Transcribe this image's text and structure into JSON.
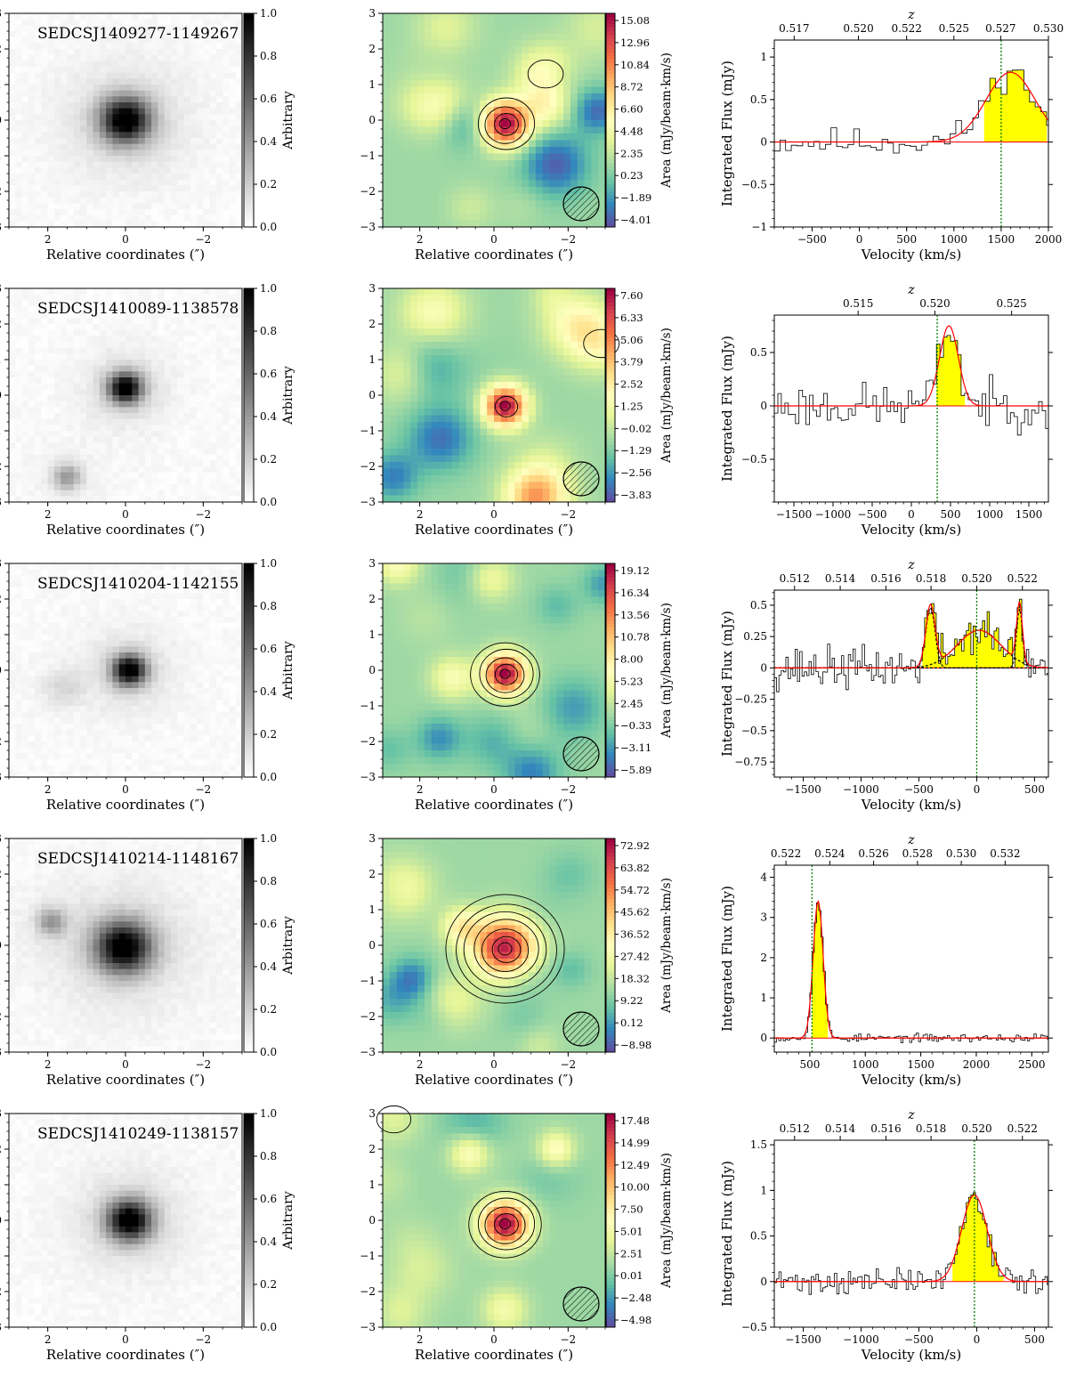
{
  "figure": {
    "coord_label": "Relative coordinates (″)",
    "cbar_label_gray": "Arbitrary",
    "cbar_label_mom0": "Area (mJy/beam·km/s)",
    "ylabel_spec": "Integrated Flux (mJy)",
    "xlabel_spec": "Velocity (km/s)",
    "z_label": "z",
    "coord_ticks_x": [
      "2",
      "0",
      "−2"
    ],
    "coord_ticks_y": [
      "3",
      "2",
      "1",
      "0",
      "−1",
      "−2",
      "−3"
    ],
    "gray_cbar_ticks": [
      "1.0",
      "0.8",
      "0.6",
      "0.4",
      "0.2",
      "0.0"
    ],
    "colors": {
      "line_fill": "#ffff00",
      "gauss": "#ff0000",
      "vline": "#008000",
      "spectrum": "#000000"
    }
  },
  "chart_data": [
    {
      "source": "SEDCSJ1409277-1149267",
      "type": "line",
      "optical": {
        "sources": [
          {
            "dx": 0.0,
            "dy": 0.0,
            "peak": 1.0,
            "sigma": 0.45
          }
        ]
      },
      "mom0": {
        "cbar_ticks": [
          "15.08",
          "12.96",
          "10.84",
          "8.72",
          "6.60",
          "4.48",
          "2.35",
          "0.23",
          "−1.89",
          "−4.01"
        ],
        "peak": {
          "dx": -0.3,
          "dy": -0.1,
          "sigma": 0.45,
          "levels": 4
        }
      },
      "spectrum": {
        "xlim": [
          -900,
          2000
        ],
        "ylim": [
          -1.0,
          1.2
        ],
        "xticks": [
          -500,
          0,
          500,
          1000,
          1500,
          2000
        ],
        "yticks": [
          -1.0,
          -0.5,
          0.0,
          0.5,
          1.0
        ],
        "ztick_labels": [
          "0.517",
          "0.520",
          "0.522",
          "0.525",
          "0.527",
          "0.530"
        ],
        "ztick_vel": [
          -690,
          -10,
          500,
          1000,
          1495,
          2000
        ],
        "vline": 1500,
        "fill_range": [
          1350,
          2000
        ],
        "channel_width": 60,
        "gauss": [
          {
            "amp": 0.82,
            "center": 1600,
            "sigma": 260
          }
        ],
        "noise": 0.12,
        "seed": 11
      }
    },
    {
      "source": "SEDCSJ1410089-1138578",
      "type": "line",
      "optical": {
        "sources": [
          {
            "dx": 0.0,
            "dy": 0.2,
            "peak": 1.0,
            "sigma": 0.3
          },
          {
            "dx": 1.5,
            "dy": -2.3,
            "peak": 0.35,
            "sigma": 0.25
          }
        ]
      },
      "mom0": {
        "cbar_ticks": [
          "7.60",
          "6.33",
          "5.06",
          "3.79",
          "2.52",
          "1.25",
          "−0.02",
          "−1.29",
          "−2.56",
          "−3.83"
        ],
        "peak": {
          "dx": -0.3,
          "dy": -0.3,
          "sigma": 0.4,
          "levels": 2
        }
      },
      "spectrum": {
        "xlim": [
          -1750,
          1750
        ],
        "ylim": [
          -0.9,
          0.85
        ],
        "xticks": [
          -1500,
          -1000,
          -500,
          0,
          500,
          1000,
          1500
        ],
        "yticks": [
          -0.5,
          0.0,
          0.5
        ],
        "ztick_labels": [
          "0.515",
          "0.520",
          "0.525"
        ],
        "ztick_vel": [
          -680,
          300,
          1280
        ],
        "vline": 330,
        "fill_range": [
          300,
          700
        ],
        "channel_width": 45,
        "gauss": [
          {
            "amp": 0.75,
            "center": 480,
            "sigma": 120
          }
        ],
        "noise": 0.15,
        "seed": 23
      }
    },
    {
      "source": "SEDCSJ1410204-1142155",
      "type": "line",
      "optical": {
        "sources": [
          {
            "dx": -0.1,
            "dy": 0.0,
            "peak": 1.0,
            "sigma": 0.3
          },
          {
            "dx": 1.6,
            "dy": -0.5,
            "peak": 0.12,
            "sigma": 0.35
          }
        ]
      },
      "mom0": {
        "cbar_ticks": [
          "19.12",
          "16.34",
          "13.56",
          "10.78",
          "8.00",
          "5.23",
          "2.45",
          "−0.33",
          "−3.11",
          "−5.89"
        ],
        "peak": {
          "dx": -0.3,
          "dy": -0.1,
          "sigma": 0.4,
          "levels": 5
        }
      },
      "spectrum": {
        "xlim": [
          -1750,
          620
        ],
        "ylim": [
          -0.87,
          0.62
        ],
        "xticks": [
          -1500,
          -1000,
          -500,
          0,
          500
        ],
        "yticks": [
          -0.75,
          -0.5,
          -0.25,
          0.0,
          0.25,
          0.5
        ],
        "ztick_labels": [
          "0.512",
          "0.514",
          "0.516",
          "0.518",
          "0.520",
          "0.522"
        ],
        "ztick_vel": [
          -1575,
          -1180,
          -785,
          -395,
          0,
          395
        ],
        "vline": 0,
        "fill_range": [
          -470,
          400
        ],
        "channel_width": 20,
        "gauss": [
          {
            "amp": 0.48,
            "center": -400,
            "sigma": 40
          },
          {
            "amp": 0.3,
            "center": 20,
            "sigma": 190
          },
          {
            "amp": 0.47,
            "center": 370,
            "sigma": 25
          }
        ],
        "noise": 0.12,
        "seed": 37
      }
    },
    {
      "source": "SEDCSJ1410214-1148167",
      "type": "line",
      "optical": {
        "sources": [
          {
            "dx": 0.05,
            "dy": -0.05,
            "peak": 1.0,
            "sigma": 0.5
          },
          {
            "dx": 1.9,
            "dy": 0.65,
            "peak": 0.35,
            "sigma": 0.25
          }
        ]
      },
      "mom0": {
        "cbar_ticks": [
          "72.92",
          "63.82",
          "54.72",
          "45.62",
          "36.52",
          "27.42",
          "18.32",
          "9.22",
          "0.12",
          "−8.98"
        ],
        "peak": {
          "dx": -0.3,
          "dy": -0.1,
          "sigma": 0.6,
          "levels": 7
        }
      },
      "spectrum": {
        "xlim": [
          180,
          2650
        ],
        "ylim": [
          -0.35,
          4.3
        ],
        "xticks": [
          500,
          1000,
          1500,
          2000,
          2500
        ],
        "yticks": [
          0,
          1,
          2,
          3,
          4
        ],
        "ztick_labels": [
          "0.522",
          "0.524",
          "0.526",
          "0.528",
          "0.530",
          "0.532"
        ],
        "ztick_vel": [
          285,
          680,
          1075,
          1470,
          1865,
          2260
        ],
        "vline": 520,
        "fill_range": [
          520,
          660
        ],
        "channel_width": 20,
        "gauss": [
          {
            "amp": 3.4,
            "center": 575,
            "sigma": 45
          }
        ],
        "noise": 0.07,
        "seed": 53
      }
    },
    {
      "source": "SEDCSJ1410249-1138157",
      "type": "line",
      "optical": {
        "sources": [
          {
            "dx": -0.1,
            "dy": 0.0,
            "peak": 1.0,
            "sigma": 0.4
          }
        ]
      },
      "mom0": {
        "cbar_ticks": [
          "17.48",
          "14.99",
          "12.49",
          "10.00",
          "7.50",
          "5.01",
          "2.51",
          "0.01",
          "−2.48",
          "−4.98"
        ],
        "peak": {
          "dx": -0.3,
          "dy": -0.1,
          "sigma": 0.45,
          "levels": 5
        }
      },
      "spectrum": {
        "xlim": [
          -1750,
          620
        ],
        "ylim": [
          -0.5,
          1.55
        ],
        "xticks": [
          -1500,
          -1000,
          -500,
          0,
          500
        ],
        "yticks": [
          -0.5,
          0.0,
          0.5,
          1.0,
          1.5
        ],
        "ztick_labels": [
          "0.512",
          "0.514",
          "0.516",
          "0.518",
          "0.520",
          "0.522"
        ],
        "ztick_vel": [
          -1575,
          -1180,
          -785,
          -395,
          0,
          395
        ],
        "vline": -20,
        "fill_range": [
          -210,
          230
        ],
        "channel_width": 20,
        "gauss": [
          {
            "amp": 0.95,
            "center": -20,
            "sigma": 110
          }
        ],
        "noise": 0.1,
        "seed": 71
      }
    }
  ]
}
